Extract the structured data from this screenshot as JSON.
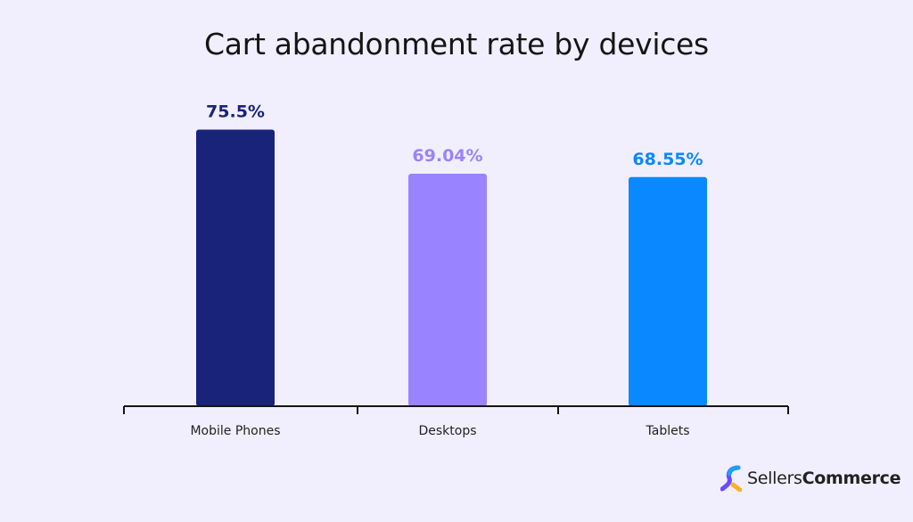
{
  "chart_data": {
    "type": "bar",
    "title": "Cart abandonment rate by devices",
    "categories": [
      "Mobile Phones",
      "Desktops",
      "Tablets"
    ],
    "values": [
      75.5,
      69.04,
      68.55
    ],
    "labels": [
      "75.5%",
      "69.04%",
      "68.55%"
    ],
    "colors": [
      "#19237a",
      "#9983ff",
      "#0a88ff"
    ],
    "xlabel": "",
    "ylabel": "",
    "ylim": [
      35,
      80
    ],
    "grid": false
  },
  "brand": {
    "part1": "Sellers",
    "part2": "Commerce"
  }
}
